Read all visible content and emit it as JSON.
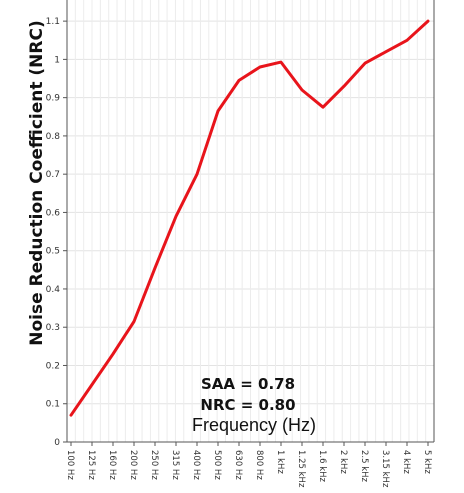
{
  "chart_data": {
    "type": "line",
    "title": "",
    "ylabel": "Noise Reduction Coefficient (NRC)",
    "xlabel": "Frequency (Hz)",
    "categories": [
      "100 Hz",
      "125 Hz",
      "160 Hz",
      "200 Hz",
      "250 Hz",
      "315 Hz",
      "400 Hz",
      "500 Hz",
      "630 Hz",
      "800 Hz",
      "1 kHz",
      "1.25 kHz",
      "1.6 kHz",
      "2 kHz",
      "2.5 kHz",
      "3.15 kHz",
      "4 kHz",
      "5 kHz"
    ],
    "series": [
      {
        "values": [
          0.07,
          0.15,
          0.23,
          0.315,
          0.455,
          0.59,
          0.7,
          0.865,
          0.945,
          0.98,
          0.993,
          0.92,
          0.875,
          0.93,
          0.99,
          1.02,
          1.05,
          1.1
        ],
        "color": "#e8141b"
      }
    ],
    "ylim": [
      0,
      1.15
    ],
    "yticks": [
      "0",
      "0.1",
      "0.2",
      "0.3",
      "0.4",
      "0.5",
      "0.6",
      "0.7",
      "0.8",
      "0.9",
      "1",
      "1.1"
    ],
    "ytick_values": [
      0,
      0.1,
      0.2,
      0.3,
      0.4,
      0.5,
      0.6,
      0.7,
      0.8,
      0.9,
      1,
      1.1
    ],
    "grid": true,
    "annotations": [
      "SAA = 0.78",
      "NRC = 0.80"
    ]
  }
}
